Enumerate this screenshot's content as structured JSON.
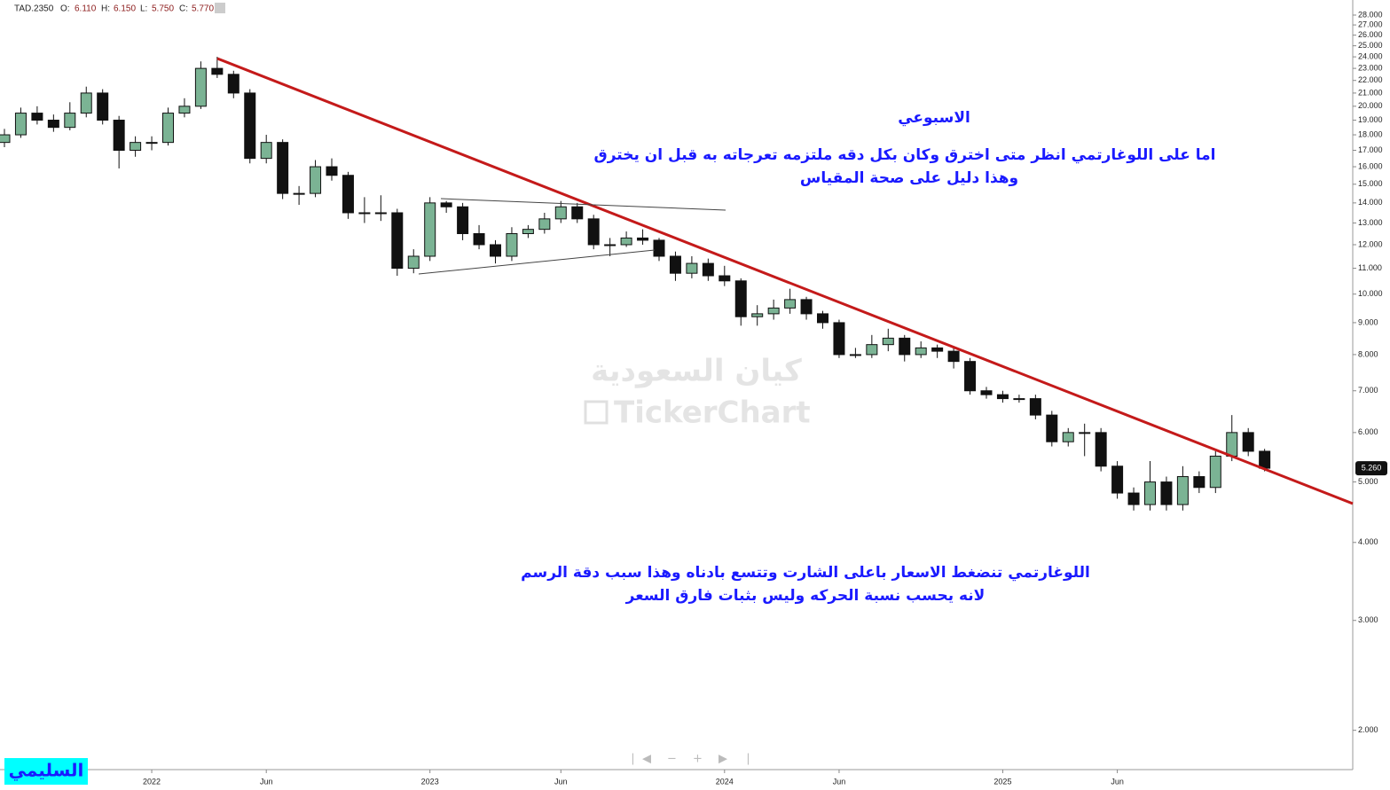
{
  "chart_data": {
    "type": "candlestick",
    "header": {
      "symbol": "TAD.2350",
      "ohlc_labels": [
        "O:",
        "H:",
        "L:",
        "C:"
      ],
      "ohlc_values": [
        "6.110",
        "6.150",
        "5.750",
        "5.770"
      ]
    },
    "annotations": [
      "الاسبوعي",
      "اما على اللوغارتمي انظر متى اخترق وكان بكل دقه ملتزمه تعرجاته به قبل ان يخترق",
      "وهذا دليل على صحة المقياس",
      "اللوغارتمي تنضغط الاسعار باعلى الشارت وتتسع بادناه وهذا سبب دقة الرسم",
      "لانه يحسب نسبة الحركه وليس بثبات فارق السعر"
    ],
    "watermark": [
      "كيان السعودية",
      "TickerChart"
    ],
    "author": "السليمي",
    "last_price": {
      "value": 5.26,
      "label": "5.260"
    },
    "log_scale": true,
    "grid": false,
    "up_color": "#7bb394",
    "down_color": "#111111",
    "ylim": [
      1.73,
      29.6
    ],
    "yticks": [
      {
        "value": 2,
        "label": "2.000"
      },
      {
        "value": 3,
        "label": "3.000"
      },
      {
        "value": 4,
        "label": "4.000"
      },
      {
        "value": 5,
        "label": "5.000"
      },
      {
        "value": 6,
        "label": "6.000"
      },
      {
        "value": 7,
        "label": "7.000"
      },
      {
        "value": 8,
        "label": "8.000"
      },
      {
        "value": 9,
        "label": "9.000"
      },
      {
        "value": 10,
        "label": "10.000"
      },
      {
        "value": 11,
        "label": "11.000"
      },
      {
        "value": 12,
        "label": "12.000"
      },
      {
        "value": 13,
        "label": "13.000"
      },
      {
        "value": 14,
        "label": "14.000"
      },
      {
        "value": 15,
        "label": "15.000"
      },
      {
        "value": 16,
        "label": "16.000"
      },
      {
        "value": 17,
        "label": "17.000"
      },
      {
        "value": 18,
        "label": "18.000"
      },
      {
        "value": 19,
        "label": "19.000"
      },
      {
        "value": 20,
        "label": "20.000"
      },
      {
        "value": 21,
        "label": "21.000"
      },
      {
        "value": 22,
        "label": "22.000"
      },
      {
        "value": 23,
        "label": "23.000"
      },
      {
        "value": 24,
        "label": "24.000"
      },
      {
        "value": 25,
        "label": "25.000"
      },
      {
        "value": 26,
        "label": "26.000"
      },
      {
        "value": 27,
        "label": "27.000"
      },
      {
        "value": 28,
        "label": "28.000"
      }
    ],
    "categories": [
      null,
      null,
      null,
      null,
      null,
      null,
      null,
      null,
      null,
      "2022",
      null,
      null,
      null,
      null,
      null,
      null,
      "Jun",
      null,
      null,
      null,
      null,
      null,
      null,
      null,
      null,
      null,
      "2023",
      null,
      null,
      null,
      null,
      null,
      null,
      null,
      "Jun",
      null,
      null,
      null,
      null,
      null,
      null,
      null,
      null,
      null,
      "2024",
      null,
      null,
      null,
      null,
      null,
      null,
      "Jun",
      null,
      null,
      null,
      null,
      null,
      null,
      null,
      null,
      null,
      "2025",
      null,
      null,
      null,
      null,
      null,
      null,
      "Jun",
      null,
      null,
      null,
      null,
      null,
      null,
      null,
      null,
      null
    ],
    "candles": [
      [
        17.5,
        18.4,
        17.2,
        18
      ],
      [
        18,
        19.9,
        17.8,
        19.5
      ],
      [
        19.5,
        20,
        18.7,
        19
      ],
      [
        19,
        19.4,
        18.2,
        18.5
      ],
      [
        18.5,
        20.3,
        18.3,
        19.5
      ],
      [
        19.5,
        21.5,
        19.2,
        21
      ],
      [
        21,
        21.3,
        18.7,
        19
      ],
      [
        19,
        19.3,
        15.9,
        17
      ],
      [
        17,
        17.9,
        16.6,
        17.5
      ],
      [
        17.5,
        17.9,
        17,
        17.5
      ],
      [
        17.5,
        19.9,
        17.3,
        19.5
      ],
      [
        19.5,
        20.6,
        19.2,
        20
      ],
      [
        20,
        23.6,
        19.8,
        23
      ],
      [
        23,
        24,
        22.2,
        22.5
      ],
      [
        22.5,
        22.8,
        20.6,
        21
      ],
      [
        21,
        21.3,
        16.2,
        16.5
      ],
      [
        16.5,
        18,
        16.2,
        17.5
      ],
      [
        17.5,
        17.7,
        14.2,
        14.5
      ],
      [
        14.5,
        14.9,
        13.9,
        14.5
      ],
      [
        14.5,
        16.4,
        14.3,
        16
      ],
      [
        16,
        16.5,
        15.2,
        15.5
      ],
      [
        15.5,
        15.7,
        13.2,
        13.5
      ],
      [
        13.5,
        14.3,
        13,
        13.5
      ],
      [
        13.5,
        14.4,
        13.1,
        13.5
      ],
      [
        13.5,
        13.7,
        10.7,
        11
      ],
      [
        11,
        11.8,
        10.8,
        11.5
      ],
      [
        11.5,
        14.3,
        11.3,
        14
      ],
      [
        14,
        14.1,
        13.5,
        13.8
      ],
      [
        13.8,
        14,
        12.2,
        12.5
      ],
      [
        12.5,
        12.9,
        11.8,
        12
      ],
      [
        12,
        12.2,
        11.2,
        11.5
      ],
      [
        11.5,
        12.8,
        11.3,
        12.5
      ],
      [
        12.5,
        12.9,
        12.3,
        12.7
      ],
      [
        12.7,
        13.5,
        12.5,
        13.2
      ],
      [
        13.2,
        14.1,
        13,
        13.8
      ],
      [
        13.8,
        14,
        13,
        13.2
      ],
      [
        13.2,
        13.4,
        11.8,
        12
      ],
      [
        12,
        12.3,
        11.5,
        12
      ],
      [
        12,
        12.6,
        11.9,
        12.3
      ],
      [
        12.3,
        12.7,
        12,
        12.2
      ],
      [
        12.2,
        12.3,
        11.3,
        11.5
      ],
      [
        11.5,
        11.7,
        10.5,
        10.8
      ],
      [
        10.8,
        11.5,
        10.6,
        11.2
      ],
      [
        11.2,
        11.4,
        10.5,
        10.7
      ],
      [
        10.7,
        11.1,
        10.3,
        10.5
      ],
      [
        10.5,
        10.6,
        8.9,
        9.2
      ],
      [
        9.2,
        9.6,
        8.9,
        9.3
      ],
      [
        9.3,
        9.8,
        9.1,
        9.5
      ],
      [
        9.5,
        10.2,
        9.3,
        9.8
      ],
      [
        9.8,
        9.9,
        9.1,
        9.3
      ],
      [
        9.3,
        9.4,
        8.8,
        9
      ],
      [
        9,
        9.1,
        7.9,
        8
      ],
      [
        8,
        8.2,
        7.9,
        8
      ],
      [
        8,
        8.6,
        7.9,
        8.3
      ],
      [
        8.3,
        8.8,
        8.1,
        8.5
      ],
      [
        8.5,
        8.6,
        7.8,
        8
      ],
      [
        8,
        8.4,
        7.9,
        8.2
      ],
      [
        8.2,
        8.3,
        7.9,
        8.1
      ],
      [
        8.1,
        8.2,
        7.6,
        7.8
      ],
      [
        7.8,
        7.9,
        6.9,
        7
      ],
      [
        7,
        7.1,
        6.8,
        6.9
      ],
      [
        6.9,
        7,
        6.7,
        6.8
      ],
      [
        6.8,
        6.9,
        6.7,
        6.8
      ],
      [
        6.8,
        6.9,
        6.3,
        6.4
      ],
      [
        6.4,
        6.5,
        5.7,
        5.8
      ],
      [
        5.8,
        6.1,
        5.7,
        6
      ],
      [
        6,
        6.2,
        5.5,
        6
      ],
      [
        6,
        6.1,
        5.2,
        5.3
      ],
      [
        5.3,
        5.4,
        4.7,
        4.8
      ],
      [
        4.8,
        4.9,
        4.5,
        4.6
      ],
      [
        4.6,
        5.4,
        4.5,
        5
      ],
      [
        5,
        5.1,
        4.5,
        4.6
      ],
      [
        4.6,
        5.3,
        4.5,
        5.1
      ],
      [
        5.1,
        5.2,
        4.8,
        4.9
      ],
      [
        4.9,
        5.6,
        4.8,
        5.5
      ],
      [
        5.5,
        6.4,
        5.4,
        6
      ],
      [
        6,
        6.1,
        5.5,
        5.6
      ],
      [
        5.6,
        5.65,
        5.2,
        5.26
      ]
    ]
  }
}
